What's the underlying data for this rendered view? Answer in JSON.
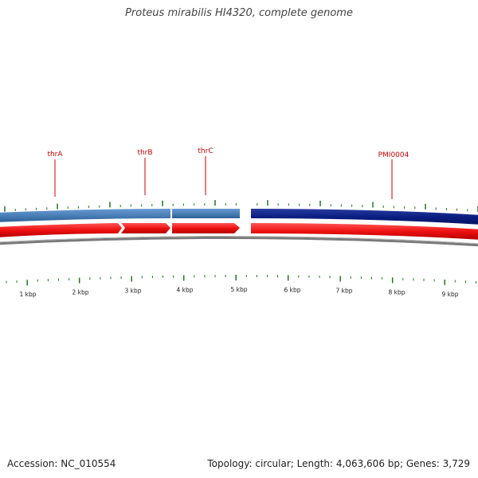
{
  "title": "Proteus mirabilis HI4320, complete genome",
  "accession": "Accession: NC_010554",
  "summary": "Topology: circular; Length: 4,063,606 bp; Genes: 3,729",
  "colors": {
    "forward_gene_light": "#4a7fb8",
    "forward_gene_dark": "#0b1f82",
    "cds_red": "#ee1111",
    "backbone": "#808080",
    "tick_green": "#1a7a1a",
    "label_red": "#cc0000"
  },
  "gene_labels": [
    {
      "name": "thrA"
    },
    {
      "name": "thrB"
    },
    {
      "name": "thrC"
    },
    {
      "name": "PMI0004"
    }
  ],
  "scale_labels": [
    "1 kbp",
    "2 kbp",
    "3 kbp",
    "4 kbp",
    "5 kbp",
    "6 kbp",
    "7 kbp",
    "8 kbp",
    "9 kbp"
  ]
}
